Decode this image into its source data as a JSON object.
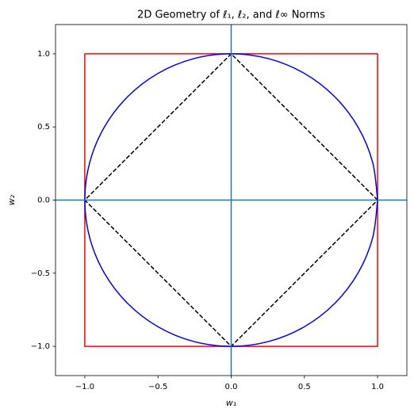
{
  "chart_data": {
    "type": "line",
    "title": "2D Geometry of ℓ₁, ℓ₂, and ℓ∞ Norms",
    "x_label": "w₁",
    "y_label": "w₂",
    "xlim": [
      -1.2,
      1.2
    ],
    "ylim": [
      -1.2,
      1.2
    ],
    "xticks": [
      {
        "value": -1,
        "label": "−1.0"
      },
      {
        "value": -0.5,
        "label": "−0.5"
      },
      {
        "value": 0,
        "label": "0.0"
      },
      {
        "value": 0.5,
        "label": "0.5"
      },
      {
        "value": 1,
        "label": "1.0"
      }
    ],
    "yticks": [
      {
        "value": -1,
        "label": "−1.0"
      },
      {
        "value": -0.5,
        "label": "−0.5"
      },
      {
        "value": 0,
        "label": "0.0"
      },
      {
        "value": 0.5,
        "label": "0.5"
      },
      {
        "value": 1,
        "label": "1.0"
      }
    ],
    "reference_lines": {
      "x": 0,
      "y": 0,
      "color": "#1f77b4"
    },
    "series": [
      {
        "color": "#ff0000",
        "dash": false,
        "smooth": false,
        "x": [
          -1,
          1,
          1,
          -1,
          -1
        ],
        "values": [
          1,
          1,
          -1,
          -1,
          1
        ]
      },
      {
        "color": "#0000ff",
        "dash": false,
        "smooth": true,
        "x": [
          1,
          0.966,
          0.866,
          0.707,
          0.5,
          0.259,
          0,
          -0.259,
          -0.5,
          -0.707,
          -0.866,
          -0.966,
          -1,
          -0.966,
          -0.866,
          -0.707,
          -0.5,
          -0.259,
          0,
          0.259,
          0.5,
          0.707,
          0.866,
          0.966,
          1
        ],
        "values": [
          0,
          0.259,
          0.5,
          0.707,
          0.866,
          0.966,
          1,
          0.966,
          0.866,
          0.707,
          0.5,
          0.259,
          0,
          -0.259,
          -0.5,
          -0.707,
          -0.866,
          -0.966,
          -1,
          -0.966,
          -0.866,
          -0.707,
          -0.5,
          -0.259,
          0
        ]
      },
      {
        "color": "#000000",
        "dash": true,
        "smooth": false,
        "x": [
          1,
          0,
          -1,
          0,
          1
        ],
        "values": [
          0,
          1,
          0,
          -1,
          0
        ]
      }
    ]
  }
}
